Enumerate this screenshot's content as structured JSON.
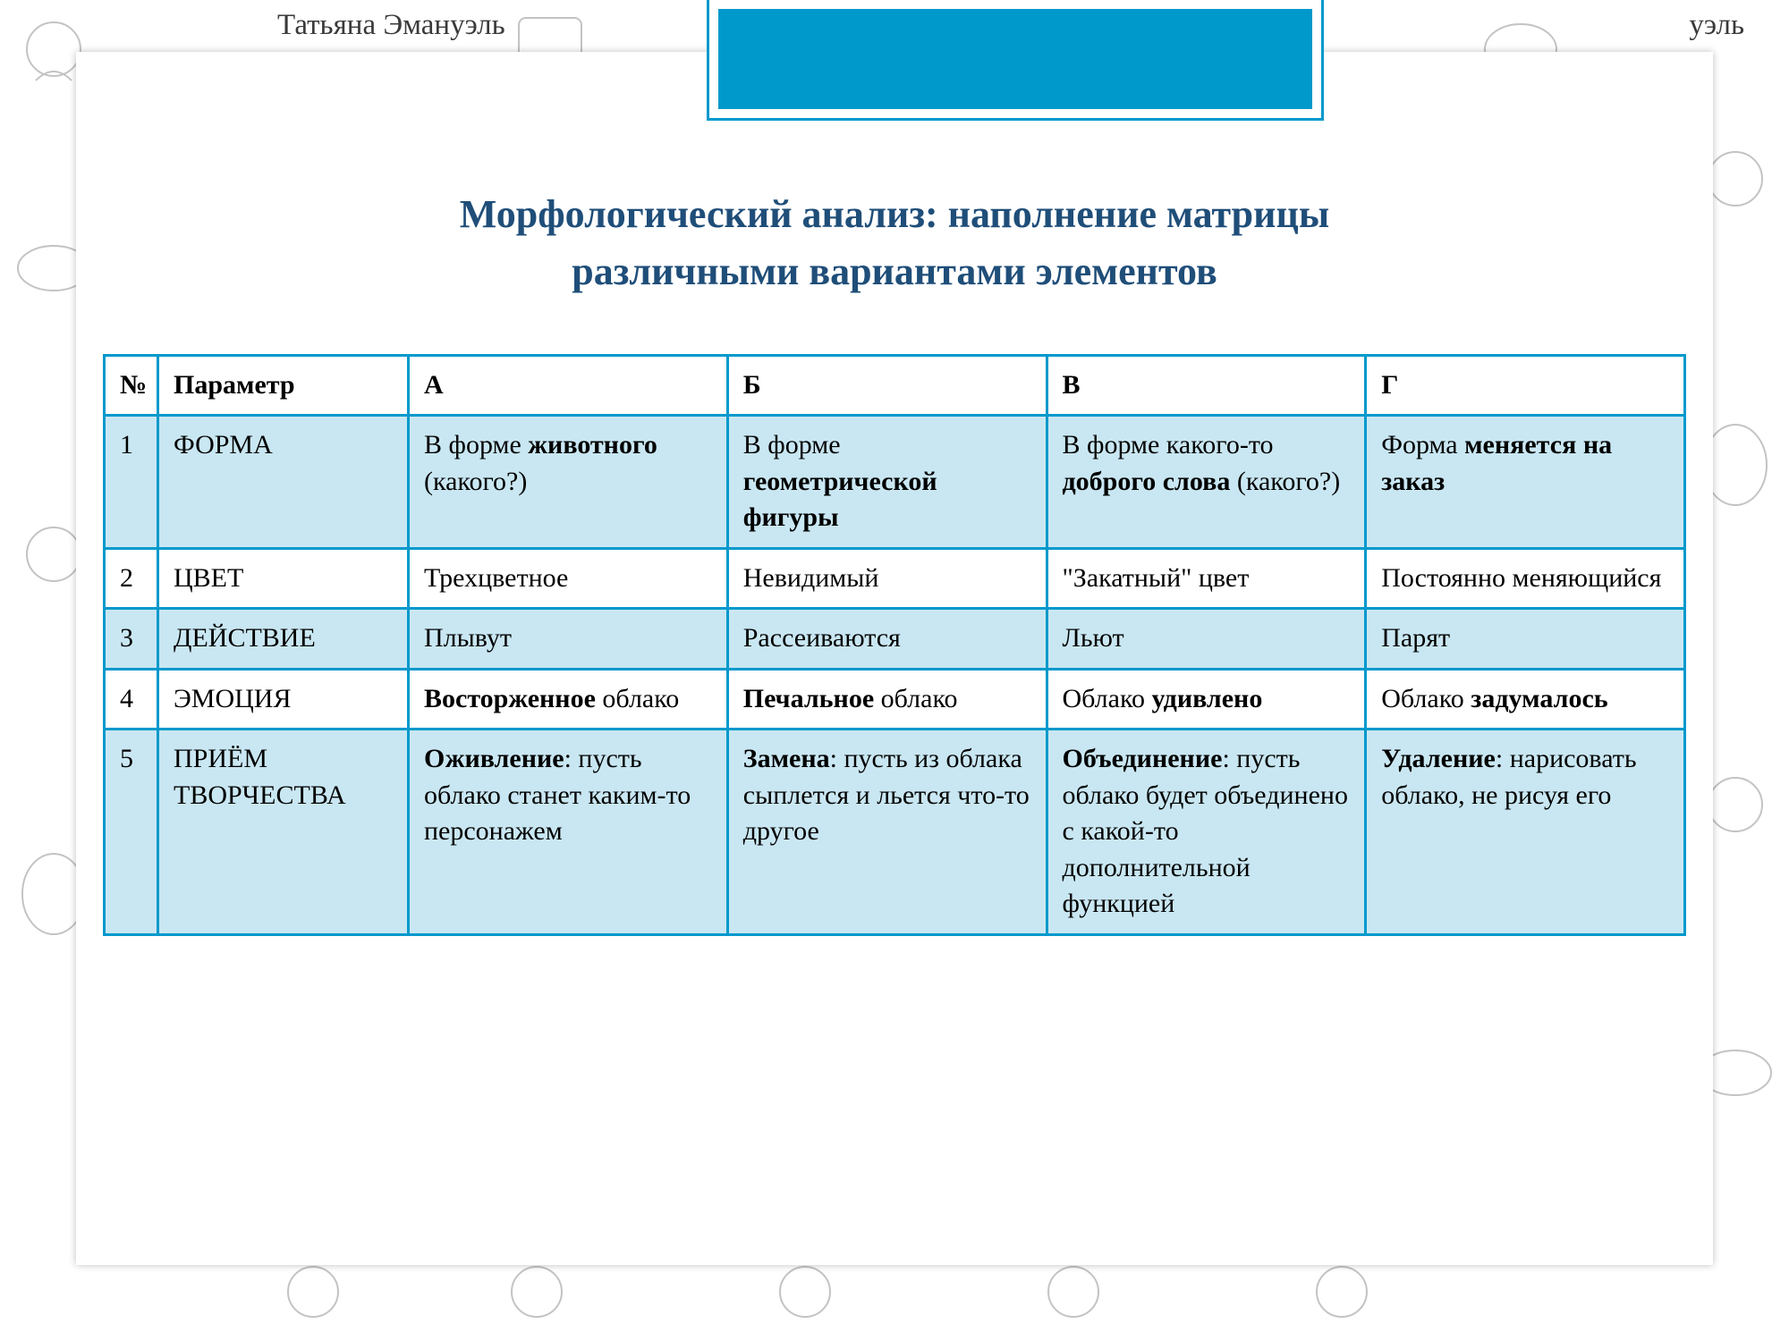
{
  "author_name": "Татьяна Эмануэль",
  "author_name_cut": "уэль",
  "title_line1": "Морфологический анализ: наполнение  матрицы",
  "title_line2": "различными вариантами элементов",
  "colors": {
    "accent": "#0099cc",
    "tint": "#c9e7f2",
    "title": "#1f4e79",
    "border": "#0099cc"
  },
  "table": {
    "headers": {
      "num": "№",
      "param": "Параметр",
      "a": "А",
      "b": "Б",
      "v": "В",
      "g": "Г"
    },
    "rows": [
      {
        "num": "1",
        "param": "ФОРМА",
        "tinted": true,
        "a": "В форме <b>животного</b> (какого?)",
        "b": "В форме <b>геометрической фигуры</b>",
        "v": "В форме какого-то <b>доброго слова</b> (какого?)",
        "g": "Форма <b>меняется на заказ</b>"
      },
      {
        "num": "2",
        "param": "ЦВЕТ",
        "tinted": false,
        "a": "Трехцветное",
        "b": "Невидимый",
        "v": "\"Закатный\" цвет",
        "g": "Постоянно меняющийся"
      },
      {
        "num": "3",
        "param": "ДЕЙСТВИЕ",
        "tinted": true,
        "a": "Плывут",
        "b": "Рассеиваются",
        "v": "Льют",
        "g": "Парят"
      },
      {
        "num": "4",
        "param": "ЭМОЦИЯ",
        "tinted": false,
        "a": "<b>Восторженное</b> облако",
        "b": "<b>Печальное</b> облако",
        "v": "Облако <b>удивлено</b>",
        "g": "Облако <b>задумалось</b>"
      },
      {
        "num": "5",
        "param": "ПРИЁМ ТВОРЧЕСТВА",
        "tinted": true,
        "a": "<b>Оживление</b>: пусть облако станет каким-то  персонажем",
        "b": "<b>Замена</b>: пусть из облака сыплется и льется что-то другое",
        "v": "<b>Объединение</b>: пусть облако будет объединено с какой-то дополнительной функцией",
        "g": "<b>Удаление</b>: нарисовать облако, не рисуя его"
      }
    ]
  }
}
